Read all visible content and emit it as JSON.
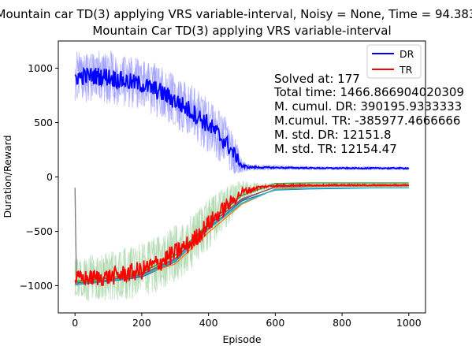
{
  "figure": {
    "suptitle": "Mountain car TD(3) applying VRS variable-interval, Noisy = None, Time = 94.383",
    "title": "Mountain Car TD(3) applying VRS variable-interval",
    "xlabel": "Episode",
    "ylabel": "Duration/Reward"
  },
  "stats": {
    "lines": [
      "Solved at: 177",
      "Total time: 1466.866904020309",
      "M. cumul. DR: 390195.9333333",
      "M.cumul. TR: -385977.4666666",
      "M. std. DR: 12151.8",
      "M. std. TR: 12154.47"
    ]
  },
  "legend": {
    "placement": "top-right",
    "entries": [
      {
        "label": "DR",
        "color": "#0000ff"
      },
      {
        "label": "TR",
        "color": "#ff0000"
      }
    ]
  },
  "chart_data": {
    "type": "line",
    "xlim": [
      -50,
      1050
    ],
    "ylim": [
      -1250,
      1250
    ],
    "xticks": [
      0,
      200,
      400,
      600,
      800,
      1000
    ],
    "yticks": [
      -1000,
      -500,
      0,
      500,
      1000
    ],
    "xtick_labels": [
      "0",
      "200",
      "400",
      "600",
      "800",
      "1000"
    ],
    "ytick_labels": [
      "−1000",
      "−500",
      "0",
      "500",
      "1000"
    ],
    "grid": false,
    "series": [
      {
        "name": "DR",
        "color": "#0000ff",
        "band_color": "#8c8cff",
        "x": [
          0,
          50,
          100,
          150,
          200,
          250,
          300,
          350,
          400,
          450,
          480,
          500,
          520,
          550,
          600,
          700,
          800,
          900,
          1000
        ],
        "y": [
          920,
          930,
          920,
          880,
          850,
          790,
          700,
          600,
          480,
          320,
          200,
          100,
          90,
          88,
          85,
          82,
          80,
          80,
          80
        ],
        "spread": [
          230,
          240,
          250,
          240,
          230,
          250,
          250,
          250,
          250,
          240,
          180,
          60,
          30,
          25,
          20,
          15,
          15,
          15,
          15
        ]
      },
      {
        "name": "TR",
        "color": "#ff0000",
        "band_color": "#9fd19f",
        "x": [
          0,
          50,
          100,
          150,
          200,
          250,
          300,
          350,
          400,
          450,
          500,
          550,
          600,
          650,
          700,
          800,
          900,
          1000
        ],
        "y": [
          -930,
          -930,
          -920,
          -890,
          -860,
          -790,
          -700,
          -600,
          -430,
          -280,
          -140,
          -95,
          -80,
          -75,
          -75,
          -75,
          -75,
          -75
        ],
        "spread": [
          200,
          220,
          230,
          240,
          250,
          260,
          260,
          250,
          240,
          200,
          110,
          40,
          25,
          20,
          15,
          15,
          15,
          15
        ]
      },
      {
        "color": "#1f77b4",
        "x": [
          0,
          100,
          200,
          300,
          400,
          500,
          600,
          700,
          800,
          900,
          1000
        ],
        "y": [
          -990,
          -960,
          -920,
          -780,
          -470,
          -220,
          -120,
          -110,
          -105,
          -100,
          -100
        ]
      },
      {
        "color": "#ff7f0e",
        "x": [
          0,
          100,
          200,
          300,
          400,
          500,
          600,
          700,
          800,
          900,
          1000
        ],
        "y": [
          -970,
          -950,
          -900,
          -800,
          -510,
          -250,
          -110,
          -90,
          -85,
          -85,
          -85
        ]
      },
      {
        "color": "#2ca02c",
        "x": [
          0,
          100,
          200,
          300,
          400,
          500,
          600,
          700,
          800,
          900,
          1000
        ],
        "y": [
          -960,
          -930,
          -880,
          -720,
          -430,
          -170,
          -60,
          -55,
          -55,
          -55,
          -55
        ]
      },
      {
        "color": "#9467bd",
        "x": [
          0,
          100,
          200,
          300,
          400,
          500,
          600,
          700,
          800,
          900,
          1000
        ],
        "y": [
          -980,
          -950,
          -900,
          -760,
          -450,
          -200,
          -95,
          -85,
          -80,
          -80,
          -80
        ]
      },
      {
        "color": "#8c564b",
        "x": [
          0,
          100,
          200,
          300,
          400,
          500,
          600,
          700,
          800,
          900,
          1000
        ],
        "y": [
          -975,
          -945,
          -895,
          -750,
          -440,
          -210,
          -90,
          -80,
          -78,
          -78,
          -78
        ]
      },
      {
        "color": "#17becf",
        "x": [
          0,
          100,
          200,
          300,
          400,
          500,
          600,
          700,
          800,
          900,
          1000
        ],
        "y": [
          -985,
          -955,
          -910,
          -770,
          -480,
          -240,
          -115,
          -105,
          -100,
          -100,
          -100
        ]
      },
      {
        "color": "#7f7f7f",
        "x": [
          0,
          2,
          4,
          6
        ],
        "y": [
          -100,
          -500,
          -900,
          -1000
        ]
      }
    ]
  }
}
